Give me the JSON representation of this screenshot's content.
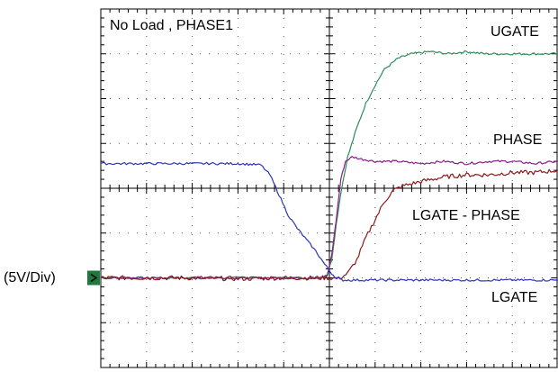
{
  "chart_data": {
    "type": "line",
    "title": "No Load , PHASE1",
    "ylabel": "(5V/Div)",
    "grid": true,
    "divisions": {
      "x": 10,
      "y": 8
    },
    "xlim": [
      0,
      10
    ],
    "ylim": [
      0,
      8
    ],
    "units": {
      "x": "div",
      "y": "div"
    },
    "ground_marker_level": 2.0,
    "series": [
      {
        "name": "UGATE",
        "color": "#2e8b57",
        "points": [
          [
            0,
            2.0
          ],
          [
            4.8,
            2.0
          ],
          [
            4.95,
            2.05
          ],
          [
            5.05,
            2.4
          ],
          [
            5.15,
            3.2
          ],
          [
            5.25,
            3.9
          ],
          [
            5.4,
            4.7
          ],
          [
            5.6,
            5.35
          ],
          [
            5.8,
            5.9
          ],
          [
            6.0,
            6.3
          ],
          [
            6.2,
            6.65
          ],
          [
            6.5,
            6.9
          ],
          [
            6.8,
            7.0
          ],
          [
            7.2,
            7.05
          ],
          [
            7.6,
            7.0
          ],
          [
            8.0,
            7.05
          ],
          [
            8.4,
            7.0
          ],
          [
            8.8,
            7.0
          ],
          [
            9.2,
            7.0
          ],
          [
            10,
            7.0
          ]
        ]
      },
      {
        "name": "PHASE",
        "color": "#8b1a8b",
        "points": [
          [
            0,
            2.0
          ],
          [
            4.8,
            2.0
          ],
          [
            4.95,
            2.05
          ],
          [
            5.05,
            2.5
          ],
          [
            5.15,
            3.3
          ],
          [
            5.25,
            4.2
          ],
          [
            5.35,
            4.6
          ],
          [
            5.5,
            4.7
          ],
          [
            5.7,
            4.65
          ],
          [
            6.0,
            4.6
          ],
          [
            6.5,
            4.6
          ],
          [
            7.0,
            4.55
          ],
          [
            7.5,
            4.6
          ],
          [
            8.0,
            4.55
          ],
          [
            8.5,
            4.6
          ],
          [
            9.0,
            4.6
          ],
          [
            9.5,
            4.55
          ],
          [
            10,
            4.6
          ]
        ]
      },
      {
        "name": "LGATE - PHASE",
        "color": "#8b1a1a",
        "points": [
          [
            0,
            2.0
          ],
          [
            1.0,
            2.0
          ],
          [
            2.0,
            2.0
          ],
          [
            3.0,
            1.98
          ],
          [
            4.0,
            2.0
          ],
          [
            4.7,
            2.0
          ],
          [
            5.0,
            2.0
          ],
          [
            5.2,
            1.98
          ],
          [
            5.4,
            2.1
          ],
          [
            5.6,
            2.4
          ],
          [
            5.8,
            2.9
          ],
          [
            6.0,
            3.3
          ],
          [
            6.2,
            3.7
          ],
          [
            6.4,
            3.95
          ],
          [
            6.6,
            4.05
          ],
          [
            6.8,
            4.1
          ],
          [
            7.0,
            4.15
          ],
          [
            7.5,
            4.25
          ],
          [
            8.0,
            4.3
          ],
          [
            8.5,
            4.3
          ],
          [
            9.0,
            4.35
          ],
          [
            9.5,
            4.35
          ],
          [
            10,
            4.4
          ]
        ]
      },
      {
        "name": "LGATE",
        "color": "#2a35b8",
        "points": [
          [
            0,
            4.55
          ],
          [
            1.0,
            4.55
          ],
          [
            2.0,
            4.55
          ],
          [
            3.0,
            4.55
          ],
          [
            3.5,
            4.52
          ],
          [
            3.7,
            4.3
          ],
          [
            3.9,
            3.85
          ],
          [
            4.1,
            3.4
          ],
          [
            4.3,
            3.1
          ],
          [
            4.5,
            2.85
          ],
          [
            4.7,
            2.6
          ],
          [
            4.9,
            2.3
          ],
          [
            5.05,
            2.1
          ],
          [
            5.15,
            2.0
          ],
          [
            5.3,
            1.95
          ],
          [
            6.0,
            1.95
          ],
          [
            7.0,
            1.95
          ],
          [
            8.0,
            1.95
          ],
          [
            9.0,
            1.95
          ],
          [
            10,
            1.95
          ]
        ]
      }
    ]
  },
  "colors": {
    "grid": "#000000",
    "dots": "#555555",
    "marker": "#1e7a3c"
  }
}
